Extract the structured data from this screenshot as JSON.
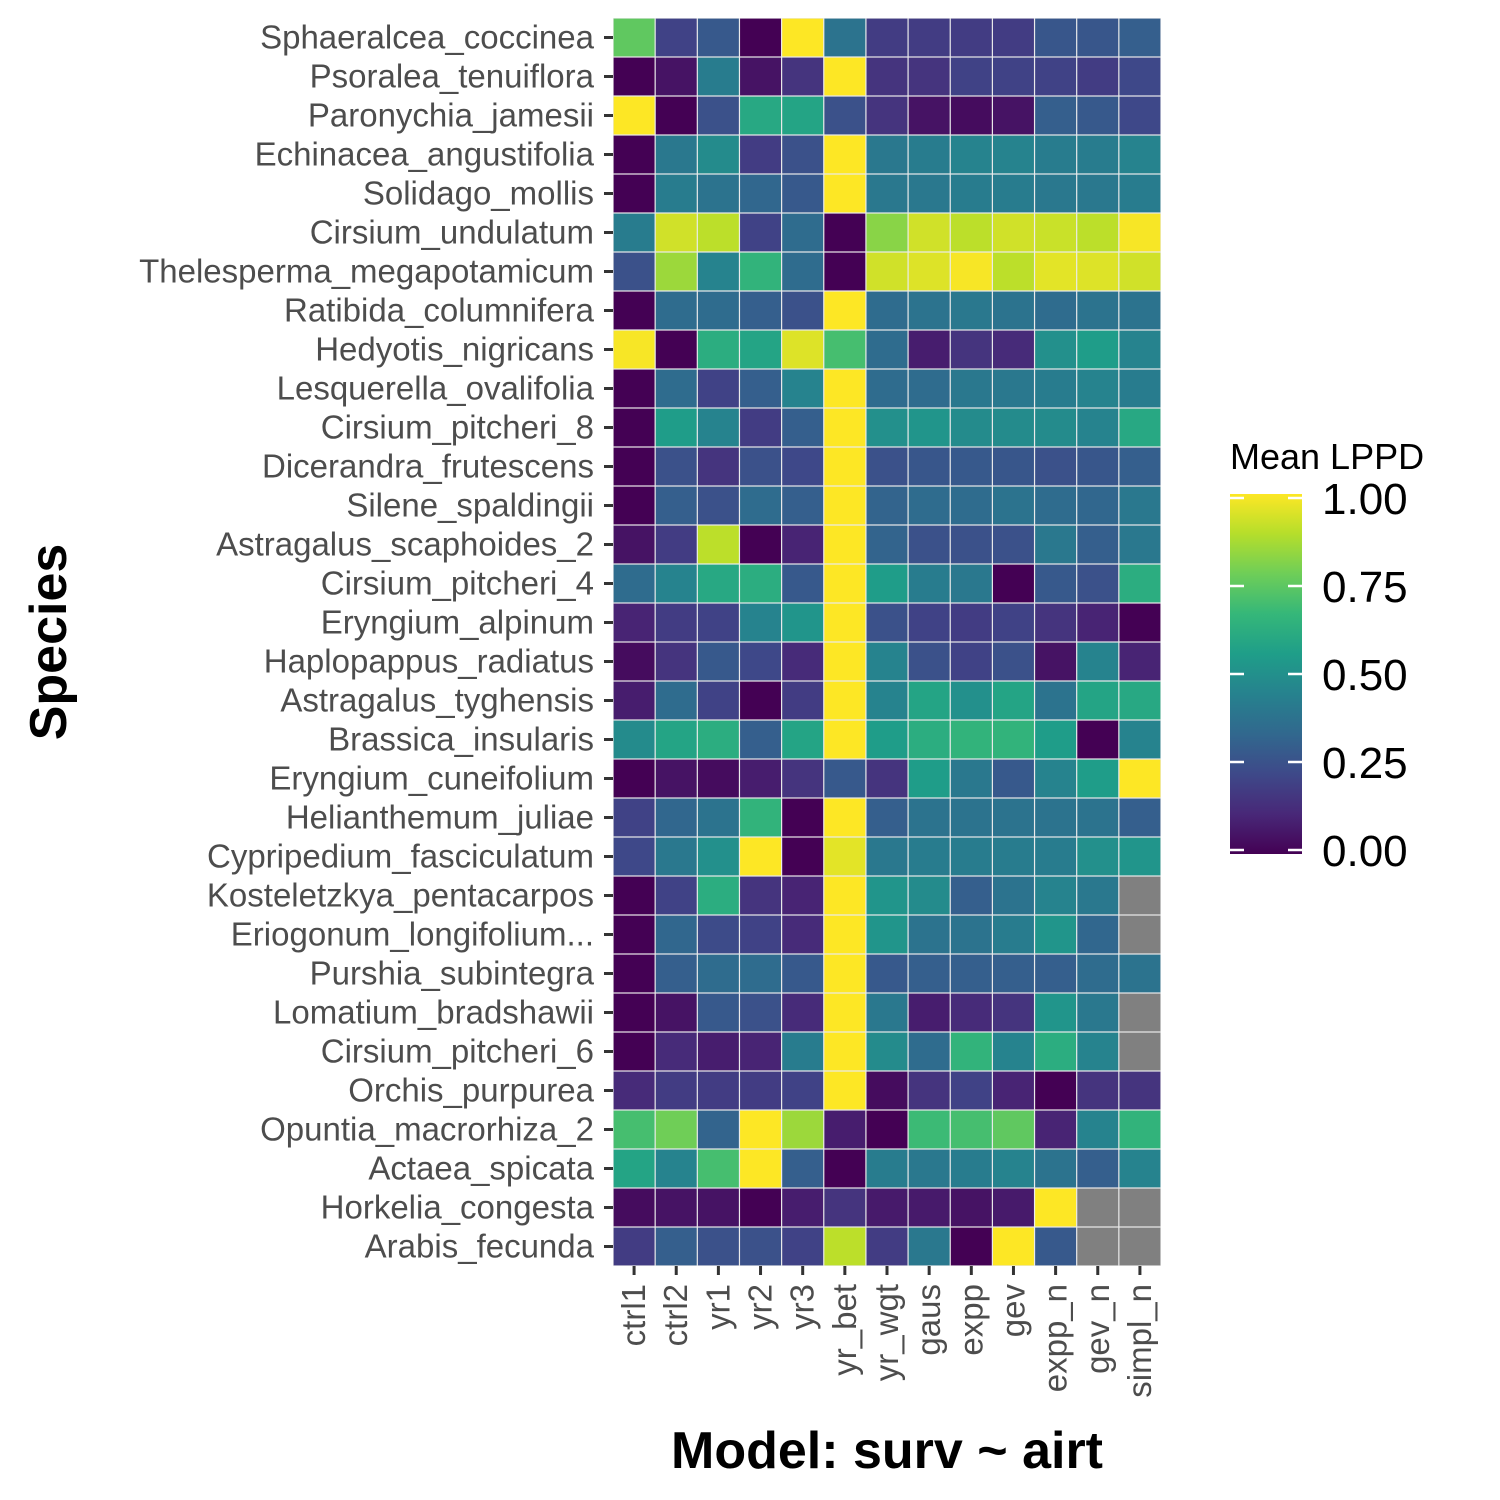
{
  "chart_data": {
    "type": "heatmap",
    "xlabel": "Model: surv ~ airt",
    "ylabel": "Species",
    "x": [
      "ctrl1",
      "ctrl2",
      "yr1",
      "yr2",
      "yr3",
      "yr_bet",
      "yr_wgt",
      "gaus",
      "expp",
      "gev",
      "expp_n",
      "gev_n",
      "simpl_n"
    ],
    "y": [
      "Sphaeralcea_coccinea",
      "Psoralea_tenuiflora",
      "Paronychia_jamesii",
      "Echinacea_angustifolia",
      "Solidago_mollis",
      "Cirsium_undulatum",
      "Thelesperma_megapotamicum",
      "Ratibida_columnifera",
      "Hedyotis_nigricans",
      "Lesquerella_ovalifolia",
      "Cirsium_pitcheri_8",
      "Dicerandra_frutescens",
      "Silene_spaldingii",
      "Astragalus_scaphoides_2",
      "Cirsium_pitcheri_4",
      "Eryngium_alpinum",
      "Haplopappus_radiatus",
      "Astragalus_tyghensis",
      "Brassica_insularis",
      "Eryngium_cuneifolium",
      "Helianthemum_juliae",
      "Cypripedium_fasciculatum",
      "Kosteletzkya_pentacarpos",
      "Eriogonum_longifolium...",
      "Purshia_subintegra",
      "Lomatium_bradshawii",
      "Cirsium_pitcheri_6",
      "Orchis_purpurea",
      "Opuntia_macrorhiza_2",
      "Actaea_spicata",
      "Horkelia_congesta",
      "Arabis_fecunda"
    ],
    "values": [
      [
        0.75,
        0.2,
        0.28,
        0.0,
        1.0,
        0.38,
        0.18,
        0.18,
        0.18,
        0.18,
        0.27,
        0.27,
        0.3
      ],
      [
        0.0,
        0.05,
        0.42,
        0.05,
        0.15,
        1.0,
        0.15,
        0.15,
        0.2,
        0.2,
        0.2,
        0.18,
        0.22
      ],
      [
        1.0,
        0.0,
        0.25,
        0.6,
        0.58,
        0.25,
        0.15,
        0.05,
        0.03,
        0.05,
        0.3,
        0.28,
        0.22
      ],
      [
        0.0,
        0.4,
        0.48,
        0.18,
        0.25,
        1.0,
        0.4,
        0.42,
        0.45,
        0.45,
        0.42,
        0.42,
        0.45
      ],
      [
        0.0,
        0.42,
        0.38,
        0.33,
        0.28,
        1.0,
        0.4,
        0.4,
        0.42,
        0.42,
        0.4,
        0.4,
        0.42
      ],
      [
        0.42,
        0.93,
        0.9,
        0.2,
        0.35,
        0.0,
        0.82,
        0.93,
        0.9,
        0.93,
        0.92,
        0.9,
        0.99
      ],
      [
        0.25,
        0.85,
        0.45,
        0.65,
        0.35,
        0.0,
        0.93,
        0.95,
        0.99,
        0.9,
        0.96,
        0.95,
        0.93
      ],
      [
        0.0,
        0.35,
        0.35,
        0.3,
        0.25,
        1.0,
        0.35,
        0.38,
        0.4,
        0.38,
        0.35,
        0.38,
        0.38
      ],
      [
        0.99,
        0.0,
        0.62,
        0.58,
        0.95,
        0.7,
        0.35,
        0.08,
        0.15,
        0.12,
        0.5,
        0.55,
        0.45
      ],
      [
        0.0,
        0.35,
        0.2,
        0.3,
        0.45,
        1.0,
        0.35,
        0.35,
        0.4,
        0.4,
        0.42,
        0.45,
        0.42
      ],
      [
        0.0,
        0.55,
        0.45,
        0.18,
        0.3,
        1.0,
        0.5,
        0.52,
        0.48,
        0.48,
        0.48,
        0.45,
        0.6
      ],
      [
        0.0,
        0.25,
        0.15,
        0.25,
        0.22,
        1.0,
        0.25,
        0.27,
        0.28,
        0.27,
        0.25,
        0.27,
        0.3
      ],
      [
        0.0,
        0.3,
        0.25,
        0.35,
        0.3,
        1.0,
        0.32,
        0.35,
        0.35,
        0.38,
        0.35,
        0.33,
        0.4
      ],
      [
        0.05,
        0.18,
        0.9,
        0.0,
        0.1,
        1.0,
        0.32,
        0.25,
        0.25,
        0.25,
        0.4,
        0.3,
        0.4
      ],
      [
        0.35,
        0.45,
        0.6,
        0.62,
        0.28,
        1.0,
        0.55,
        0.42,
        0.4,
        0.0,
        0.28,
        0.25,
        0.62
      ],
      [
        0.1,
        0.18,
        0.2,
        0.45,
        0.52,
        1.0,
        0.25,
        0.2,
        0.18,
        0.2,
        0.15,
        0.1,
        0.0
      ],
      [
        0.03,
        0.15,
        0.28,
        0.22,
        0.12,
        1.0,
        0.45,
        0.25,
        0.2,
        0.25,
        0.05,
        0.45,
        0.1
      ],
      [
        0.08,
        0.35,
        0.2,
        0.0,
        0.18,
        1.0,
        0.45,
        0.58,
        0.5,
        0.58,
        0.38,
        0.58,
        0.6
      ],
      [
        0.48,
        0.58,
        0.62,
        0.3,
        0.58,
        1.0,
        0.55,
        0.62,
        0.65,
        0.65,
        0.55,
        0.0,
        0.45
      ],
      [
        0.0,
        0.05,
        0.03,
        0.08,
        0.15,
        0.28,
        0.15,
        0.55,
        0.4,
        0.28,
        0.45,
        0.55,
        1.0
      ],
      [
        0.2,
        0.33,
        0.38,
        0.65,
        0.0,
        1.0,
        0.3,
        0.38,
        0.38,
        0.38,
        0.38,
        0.38,
        0.3
      ],
      [
        0.22,
        0.4,
        0.5,
        1.0,
        0.0,
        0.96,
        0.4,
        0.42,
        0.42,
        0.42,
        0.42,
        0.5,
        0.52
      ],
      [
        0.0,
        0.2,
        0.62,
        0.15,
        0.1,
        1.0,
        0.52,
        0.48,
        0.3,
        0.38,
        0.45,
        0.4,
        null
      ],
      [
        0.0,
        0.33,
        0.23,
        0.2,
        0.12,
        1.0,
        0.52,
        0.38,
        0.38,
        0.42,
        0.52,
        0.33,
        null
      ],
      [
        0.0,
        0.3,
        0.35,
        0.35,
        0.28,
        1.0,
        0.28,
        0.3,
        0.3,
        0.3,
        0.3,
        0.35,
        0.38
      ],
      [
        0.0,
        0.05,
        0.28,
        0.25,
        0.12,
        1.0,
        0.4,
        0.08,
        0.12,
        0.15,
        0.52,
        0.4,
        null
      ],
      [
        0.0,
        0.12,
        0.08,
        0.1,
        0.42,
        1.0,
        0.48,
        0.35,
        0.65,
        0.45,
        0.62,
        0.45,
        null
      ],
      [
        0.12,
        0.18,
        0.18,
        0.18,
        0.2,
        1.0,
        0.03,
        0.15,
        0.2,
        0.1,
        0.0,
        0.15,
        0.15
      ],
      [
        0.7,
        0.78,
        0.32,
        1.0,
        0.85,
        0.08,
        0.0,
        0.68,
        0.7,
        0.75,
        0.1,
        0.45,
        0.65
      ],
      [
        0.58,
        0.45,
        0.7,
        1.0,
        0.3,
        0.0,
        0.42,
        0.4,
        0.42,
        0.45,
        0.38,
        0.3,
        0.45
      ],
      [
        0.03,
        0.05,
        0.05,
        0.0,
        0.08,
        0.15,
        0.07,
        0.07,
        0.05,
        0.07,
        1.0,
        null,
        null
      ],
      [
        0.18,
        0.3,
        0.25,
        0.25,
        0.2,
        0.9,
        0.18,
        0.4,
        0.0,
        1.0,
        0.28,
        null,
        null
      ]
    ],
    "legend": {
      "title": "Mean LPPD",
      "ticks": [
        "0.00",
        "0.25",
        "0.50",
        "0.75",
        "1.00"
      ],
      "range": [
        0,
        1
      ],
      "placement": "right"
    },
    "colorscale": [
      "#440154",
      "#482878",
      "#3e4989",
      "#31688e",
      "#26828e",
      "#1f9e89",
      "#35b779",
      "#6ece58",
      "#b5de2b",
      "#fde725"
    ],
    "na_color": "#808080",
    "grid": true,
    "panel_color": "#ebebeb"
  }
}
